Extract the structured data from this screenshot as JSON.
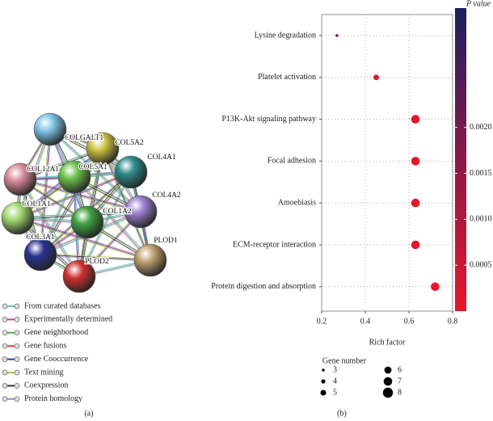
{
  "network": {
    "nodes": [
      {
        "label": "COLGALT1"
      },
      {
        "label": "COL5A2"
      },
      {
        "label": "COL4A1"
      },
      {
        "label": "COL12A1"
      },
      {
        "label": "COL5A1"
      },
      {
        "label": "COL4A2"
      },
      {
        "label": "COL1A1"
      },
      {
        "label": "COL1A2"
      },
      {
        "label": "COL3A1"
      },
      {
        "label": "PLOD1"
      },
      {
        "label": "PLOD2"
      }
    ],
    "legend": [
      "From curated databases",
      "Experimentally determined",
      "Gene neighborhood",
      "Gene fusions",
      "Gene Cooccurrence",
      "Text mining",
      "Coexpression",
      "Protein homology"
    ],
    "panel_label": "(a)"
  },
  "chart_data": {
    "type": "scatter",
    "categories": [
      "Lysine degradation",
      "Platelet activation",
      "P13K-Akt signaling pathway",
      "Focal adhesion",
      "Amoebiasis",
      "ECM-receptor interaction",
      "Protein digestion and absorption"
    ],
    "values": [
      0.27,
      0.45,
      0.63,
      0.63,
      0.63,
      0.63,
      0.72
    ],
    "sizes": [
      3,
      5,
      7,
      7,
      7,
      7,
      7
    ],
    "pvalues": [
      0.0024,
      0.0001,
      1e-05,
      1e-05,
      1e-05,
      1e-05,
      1e-06
    ],
    "xlabel": "Rich factor",
    "xlim": [
      0.2,
      0.8
    ],
    "xticks": [
      0.2,
      0.4,
      0.6,
      0.8
    ],
    "grid": true,
    "colorbar": {
      "title": "P value",
      "lim": [
        0,
        0.0033
      ],
      "ticks": [
        0.0005,
        {
          "value": 0.001,
          "label": "0.0010"
        },
        0.0015,
        {
          "value": 0.002,
          "label": "0.0020"
        }
      ],
      "colors": [
        "#e8162a",
        "#8c1848",
        "#1c2060"
      ]
    },
    "size_legend": {
      "title": "Gene number",
      "values": [
        3,
        4,
        5,
        6,
        7,
        8
      ]
    },
    "panel_label": "(b)"
  }
}
